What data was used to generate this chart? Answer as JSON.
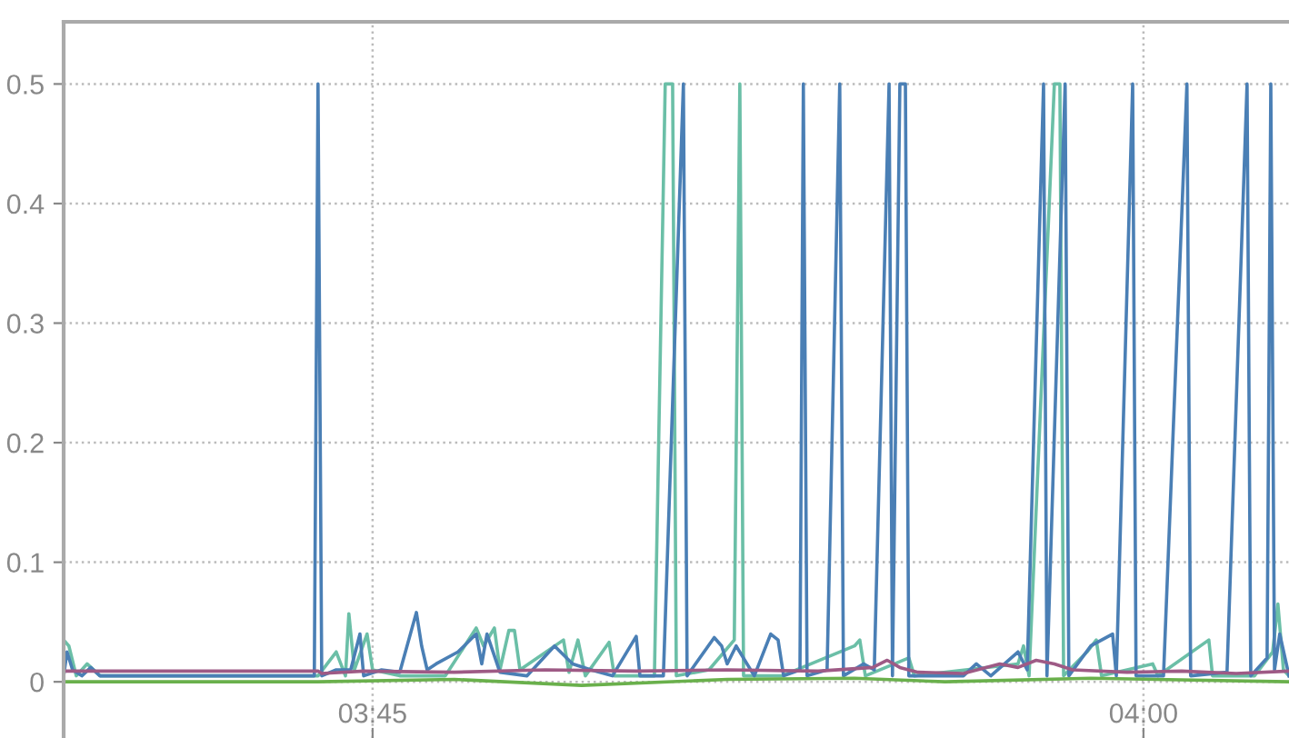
{
  "chart_data": {
    "type": "line",
    "xlim": [
      3.6498,
      4.0472
    ],
    "ylim": [
      -0.047,
      0.552
    ],
    "xticks": [
      {
        "value": 3.75,
        "label": "03:45"
      },
      {
        "value": 4,
        "label": "04:00"
      }
    ],
    "yticks": [
      0,
      0.1,
      0.2,
      0.3,
      0.4,
      0.5
    ],
    "grid": true,
    "marker": "none",
    "line_style": "solid",
    "series": [
      {
        "color": "#6bbfa7",
        "x": [
          3.6498,
          3.6515,
          3.6539,
          3.6574,
          3.6616,
          3.6645,
          3.7323,
          3.7382,
          3.7412,
          3.7423,
          3.7441,
          3.7482,
          3.75,
          3.7588,
          3.7736,
          3.7836,
          3.786,
          3.7895,
          3.7913,
          3.7942,
          3.796,
          3.7978,
          3.8119,
          3.8137,
          3.8166,
          3.819,
          3.8267,
          3.8284,
          3.8414,
          3.8449,
          3.8461,
          3.8473,
          3.8485,
          3.8591,
          3.8673,
          3.8691,
          3.8703,
          3.8827,
          3.9063,
          3.908,
          3.9098,
          3.9239,
          3.9257,
          3.9593,
          3.9611,
          3.9629,
          3.9711,
          3.9729,
          3.9741,
          3.9817,
          3.9847,
          3.9864,
          4.003,
          4.0047,
          4.0212,
          4.0224,
          4.036,
          4.0419,
          4.0436,
          4.0454,
          4.0472
        ],
        "values": [
          0.035,
          0.03,
          0.005,
          0.015,
          0.005,
          0.005,
          0.005,
          0.025,
          0.005,
          0.057,
          0.01,
          0.04,
          0.01,
          0.005,
          0.005,
          0.045,
          0.03,
          0.045,
          0.01,
          0.043,
          0.043,
          0.01,
          0.035,
          0.008,
          0.035,
          0.005,
          0.033,
          0.005,
          0.005,
          0.5,
          0.5,
          0.5,
          0.005,
          0.01,
          0.035,
          0.5,
          0.005,
          0.005,
          0.03,
          0.035,
          0.005,
          0.02,
          0.005,
          0.015,
          0.03,
          0.005,
          0.5,
          0.5,
          0.005,
          0.025,
          0.035,
          0.005,
          0.015,
          0.005,
          0.035,
          0.005,
          0.005,
          0.025,
          0.065,
          0.01,
          0.005
        ]
      },
      {
        "color": "#4a7fb5",
        "x": [
          3.6498,
          3.6509,
          3.6527,
          3.6557,
          3.6586,
          3.6616,
          3.6645,
          3.7311,
          3.7323,
          3.7335,
          3.7382,
          3.7429,
          3.7459,
          3.7471,
          3.7529,
          3.7588,
          3.7642,
          3.7659,
          3.7677,
          3.7706,
          3.7777,
          3.7836,
          3.7854,
          3.7871,
          3.7913,
          3.8001,
          3.809,
          3.8149,
          3.8208,
          3.8278,
          3.8355,
          3.8367,
          3.8443,
          3.8508,
          3.852,
          3.8608,
          3.8632,
          3.865,
          3.8679,
          3.8738,
          3.8791,
          3.8815,
          3.8833,
          3.8886,
          3.8897,
          3.8909,
          3.8974,
          3.9015,
          3.9027,
          3.9092,
          3.9127,
          3.9175,
          3.9186,
          3.921,
          3.9228,
          3.9239,
          3.9416,
          3.9458,
          3.9505,
          3.9593,
          3.9623,
          3.9676,
          3.9687,
          3.9746,
          3.9758,
          3.9829,
          3.99,
          3.9912,
          3.9965,
          3.9976,
          4.0065,
          4.0141,
          4.0153,
          4.0271,
          4.0336,
          4.0348,
          4.0401,
          4.0413,
          4.0425,
          4.0442,
          4.0472
        ],
        "values": [
          0.005,
          0.025,
          0.01,
          0.005,
          0.012,
          0.005,
          0.005,
          0.005,
          0.5,
          0.005,
          0.01,
          0.01,
          0.04,
          0.005,
          0.01,
          0.008,
          0.058,
          0.03,
          0.01,
          0.015,
          0.025,
          0.04,
          0.015,
          0.04,
          0.008,
          0.005,
          0.03,
          0.015,
          0.01,
          0.005,
          0.038,
          0.005,
          0.005,
          0.5,
          0.005,
          0.037,
          0.03,
          0.015,
          0.03,
          0.005,
          0.04,
          0.035,
          0.005,
          0.01,
          0.5,
          0.005,
          0.01,
          0.5,
          0.005,
          0.015,
          0.01,
          0.5,
          0.005,
          0.5,
          0.5,
          0.005,
          0.005,
          0.015,
          0.005,
          0.025,
          0.01,
          0.5,
          0.005,
          0.5,
          0.005,
          0.03,
          0.04,
          0.005,
          0.5,
          0.005,
          0.005,
          0.5,
          0.005,
          0.008,
          0.5,
          0.005,
          0.02,
          0.5,
          0.01,
          0.04,
          0.005
        ]
      },
      {
        "color": "#6ab04c",
        "x": [
          3.6498,
          3.7323,
          3.7765,
          3.8178,
          3.865,
          3.9063,
          3.9357,
          3.9829,
          4.0472
        ],
        "values": [
          0,
          0,
          0.002,
          -0.003,
          0.002,
          0.003,
          0,
          0.003,
          0
        ]
      },
      {
        "color": "#9e5a85",
        "x": [
          3.6498,
          3.7323,
          3.7335,
          3.7471,
          3.7765,
          3.806,
          3.8355,
          3.865,
          3.8945,
          3.9122,
          3.9169,
          3.921,
          3.9269,
          3.9416,
          3.9534,
          3.9593,
          3.9652,
          3.9711,
          3.977,
          3.9947,
          4.0124,
          4.0301,
          4.0472
        ],
        "values": [
          0.009,
          0.009,
          0.007,
          0.009,
          0.008,
          0.01,
          0.009,
          0.01,
          0.009,
          0.012,
          0.018,
          0.012,
          0.008,
          0.007,
          0.015,
          0.012,
          0.018,
          0.015,
          0.01,
          0.008,
          0.009,
          0.007,
          0.009
        ]
      }
    ]
  }
}
